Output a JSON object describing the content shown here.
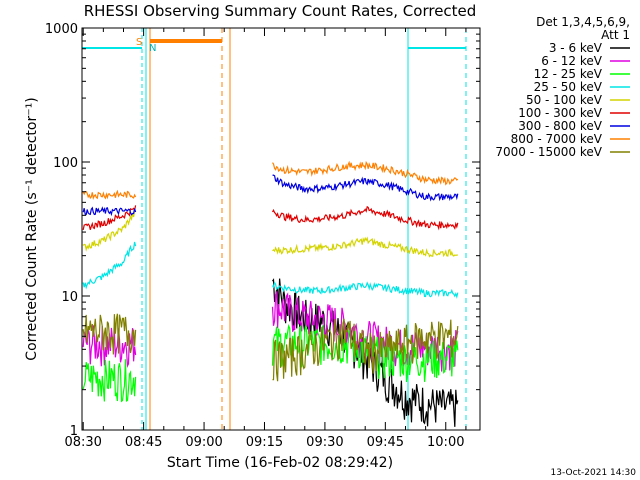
{
  "chart_data": {
    "type": "line",
    "title": "RHESSI Observing Summary Count Rates, Corrected",
    "xlabel": "Start Time (16-Feb-02 08:29:42)",
    "ylabel": "Corrected Count Rate (s⁻¹ detector⁻¹)",
    "yscale": "log",
    "ylim": [
      1,
      1000
    ],
    "x_ticks": [
      "08:30",
      "08:45",
      "09:00",
      "09:15",
      "09:30",
      "09:45",
      "10:00"
    ],
    "y_ticks": [
      "1",
      "10",
      "100",
      "1000"
    ],
    "legend_title": [
      "Det 1,3,4,5,6,9,",
      "Att 1"
    ],
    "legend_position": "right",
    "footer": "13-Oct-2021 14:30",
    "flags": [
      {
        "label": "S",
        "color": "#ff8000"
      },
      {
        "label": "N",
        "color": "#00e5e5"
      }
    ],
    "x_minutes": [
      0,
      5,
      10,
      13,
      47,
      50,
      55,
      60,
      65,
      70,
      75,
      80,
      85,
      90,
      93
    ],
    "series": [
      {
        "name": "3 - 6 keV",
        "color": "#000000",
        "values": [
          null,
          null,
          null,
          null,
          13,
          9,
          7,
          6.5,
          5,
          3.5,
          2.5,
          1.8,
          1.6,
          1.5,
          1.5
        ]
      },
      {
        "name": "6 - 12 keV",
        "color": "#e000e0",
        "values": [
          4.5,
          4.5,
          4.5,
          4.5,
          9,
          8,
          7,
          6.8,
          6,
          5,
          4.5,
          4.2,
          4.2,
          4.2,
          4.2
        ]
      },
      {
        "name": "12 - 25 keV",
        "color": "#00ff00",
        "values": [
          2.5,
          2.5,
          2.5,
          2.5,
          4.5,
          4.5,
          4.5,
          4.5,
          4.5,
          4,
          3.5,
          3.5,
          3.5,
          3.5,
          3.5
        ]
      },
      {
        "name": "25 - 50 keV",
        "color": "#00e5e5",
        "values": [
          12,
          14,
          18,
          25,
          12,
          11.5,
          11,
          11,
          11.5,
          12,
          11.5,
          11,
          10.5,
          10.5,
          10.5
        ]
      },
      {
        "name": "50 - 100 keV",
        "color": "#d4d400",
        "values": [
          23,
          26,
          32,
          42,
          22,
          22,
          22.5,
          23,
          24,
          26,
          24,
          22.5,
          21,
          21,
          21
        ]
      },
      {
        "name": "100 - 300 keV",
        "color": "#e00000",
        "values": [
          32,
          35,
          40,
          45,
          43,
          39,
          37,
          38,
          40,
          44,
          41,
          37,
          34,
          34,
          34
        ]
      },
      {
        "name": "300 - 800 keV",
        "color": "#0000e0",
        "values": [
          43,
          43,
          43,
          43,
          78,
          68,
          63,
          64,
          68,
          72,
          68,
          61,
          55,
          55,
          55
        ]
      },
      {
        "name": "800 - 7000 keV",
        "color": "#ff8000",
        "values": [
          57,
          57,
          57,
          57,
          95,
          87,
          84,
          88,
          93,
          95,
          90,
          82,
          74,
          72,
          72
        ]
      },
      {
        "name": "7000 - 15000 keV",
        "color": "#808000",
        "values": [
          5.5,
          5.5,
          5.5,
          5.5,
          3.5,
          3.5,
          4,
          4.5,
          5.5,
          4,
          4,
          4.5,
          5,
          5,
          5
        ]
      }
    ]
  }
}
